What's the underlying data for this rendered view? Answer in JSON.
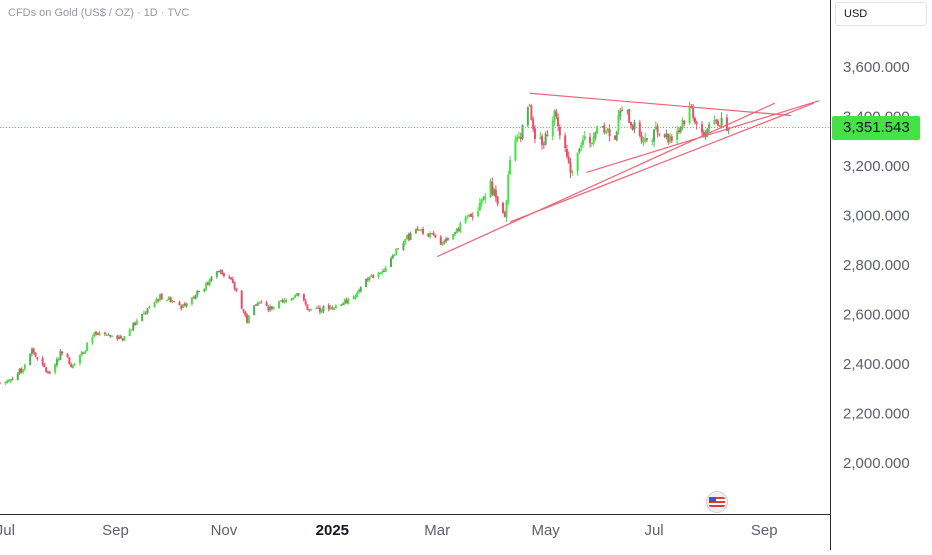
{
  "header": {
    "symbol_title": "CFDs on Gold (US$ / OZ) · 1D · TVC",
    "currency": "USD"
  },
  "last_price": {
    "label": "3,351.543",
    "value": 3351.543
  },
  "icons": {
    "flag": "us-flag-icon"
  },
  "colors": {
    "up_candle": "#4caf50",
    "up_candle_bright": "#44e244",
    "down_candle": "#e8506a",
    "trendline": "#f06278",
    "price_line": "#44e244",
    "axis_text": "#5d606b"
  },
  "chart_data": {
    "type": "candlestick",
    "title": "CFDs on Gold (US$ / OZ) · 1D · TVC",
    "ylim": [
      1800,
      3800
    ],
    "y_ticks": [
      {
        "value": 2000,
        "label": "2,000.000"
      },
      {
        "value": 2200,
        "label": "2,200.000"
      },
      {
        "value": 2400,
        "label": "2,400.000"
      },
      {
        "value": 2600,
        "label": "2,600.000"
      },
      {
        "value": 2800,
        "label": "2,800.000"
      },
      {
        "value": 3000,
        "label": "3,000.000"
      },
      {
        "value": 3200,
        "label": "3,200.000"
      },
      {
        "value": 3400,
        "label": "3,400.000"
      },
      {
        "value": 3600,
        "label": "3,600.000"
      }
    ],
    "x_range": [
      "2024-06-28",
      "2025-10-08"
    ],
    "x_ticks": [
      {
        "date": "2024-07-01",
        "label": "Jul",
        "bold": false
      },
      {
        "date": "2024-09-01",
        "label": "Sep",
        "bold": false
      },
      {
        "date": "2024-11-01",
        "label": "Nov",
        "bold": false
      },
      {
        "date": "2025-01-01",
        "label": "2025",
        "bold": true
      },
      {
        "date": "2025-03-01",
        "label": "Mar",
        "bold": false
      },
      {
        "date": "2025-05-01",
        "label": "May",
        "bold": false
      },
      {
        "date": "2025-07-01",
        "label": "Jul",
        "bold": false
      },
      {
        "date": "2025-09-01",
        "label": "Sep",
        "bold": false
      }
    ],
    "close_path": [
      [
        "2024-06-28",
        2320
      ],
      [
        "2024-07-03",
        2330
      ],
      [
        "2024-07-10",
        2370
      ],
      [
        "2024-07-16",
        2460
      ],
      [
        "2024-07-19",
        2410
      ],
      [
        "2024-07-25",
        2360
      ],
      [
        "2024-08-02",
        2450
      ],
      [
        "2024-08-07",
        2390
      ],
      [
        "2024-08-14",
        2450
      ],
      [
        "2024-08-20",
        2510
      ],
      [
        "2024-08-29",
        2510
      ],
      [
        "2024-09-05",
        2500
      ],
      [
        "2024-09-12",
        2560
      ],
      [
        "2024-09-20",
        2620
      ],
      [
        "2024-09-26",
        2670
      ],
      [
        "2024-10-04",
        2650
      ],
      [
        "2024-10-10",
        2620
      ],
      [
        "2024-10-17",
        2690
      ],
      [
        "2024-10-23",
        2720
      ],
      [
        "2024-10-30",
        2780
      ],
      [
        "2024-11-04",
        2740
      ],
      [
        "2024-11-08",
        2690
      ],
      [
        "2024-11-14",
        2570
      ],
      [
        "2024-11-20",
        2650
      ],
      [
        "2024-11-25",
        2620
      ],
      [
        "2024-12-03",
        2640
      ],
      [
        "2024-12-09",
        2660
      ],
      [
        "2024-12-12",
        2690
      ],
      [
        "2024-12-19",
        2610
      ],
      [
        "2024-12-27",
        2620
      ],
      [
        "2025-01-06",
        2640
      ],
      [
        "2025-01-13",
        2660
      ],
      [
        "2025-01-21",
        2740
      ],
      [
        "2025-01-28",
        2760
      ],
      [
        "2025-02-04",
        2840
      ],
      [
        "2025-02-11",
        2900
      ],
      [
        "2025-02-19",
        2940
      ],
      [
        "2025-02-25",
        2920
      ],
      [
        "2025-03-03",
        2880
      ],
      [
        "2025-03-10",
        2910
      ],
      [
        "2025-03-17",
        2990
      ],
      [
        "2025-03-24",
        3020
      ],
      [
        "2025-03-31",
        3120
      ],
      [
        "2025-04-04",
        3040
      ],
      [
        "2025-04-08",
        2980
      ],
      [
        "2025-04-11",
        3240
      ],
      [
        "2025-04-17",
        3330
      ],
      [
        "2025-04-22",
        3440
      ],
      [
        "2025-04-25",
        3320
      ],
      [
        "2025-04-30",
        3290
      ],
      [
        "2025-05-06",
        3420
      ],
      [
        "2025-05-09",
        3320
      ],
      [
        "2025-05-15",
        3170
      ],
      [
        "2025-05-20",
        3290
      ],
      [
        "2025-05-26",
        3300
      ],
      [
        "2025-06-02",
        3360
      ],
      [
        "2025-06-09",
        3320
      ],
      [
        "2025-06-13",
        3440
      ],
      [
        "2025-06-19",
        3360
      ],
      [
        "2025-06-26",
        3300
      ],
      [
        "2025-07-03",
        3340
      ],
      [
        "2025-07-09",
        3300
      ],
      [
        "2025-07-15",
        3350
      ],
      [
        "2025-07-22",
        3430
      ],
      [
        "2025-07-28",
        3310
      ],
      [
        "2025-08-01",
        3360
      ],
      [
        "2025-08-06",
        3380
      ],
      [
        "2025-08-12",
        3350
      ]
    ],
    "last_close": 3351.543,
    "trendlines": [
      {
        "name": "top",
        "points": [
          [
            "2025-04-22",
            3490
          ],
          [
            "2025-09-16",
            3400
          ]
        ]
      },
      {
        "name": "lower-1",
        "points": [
          [
            "2025-03-01",
            2830
          ],
          [
            "2025-09-07",
            3450
          ]
        ]
      },
      {
        "name": "lower-2",
        "points": [
          [
            "2025-04-11",
            2970
          ],
          [
            "2025-09-29",
            3450
          ]
        ]
      },
      {
        "name": "lower-3",
        "points": [
          [
            "2025-05-24",
            3170
          ],
          [
            "2025-10-02",
            3460
          ]
        ]
      }
    ]
  }
}
